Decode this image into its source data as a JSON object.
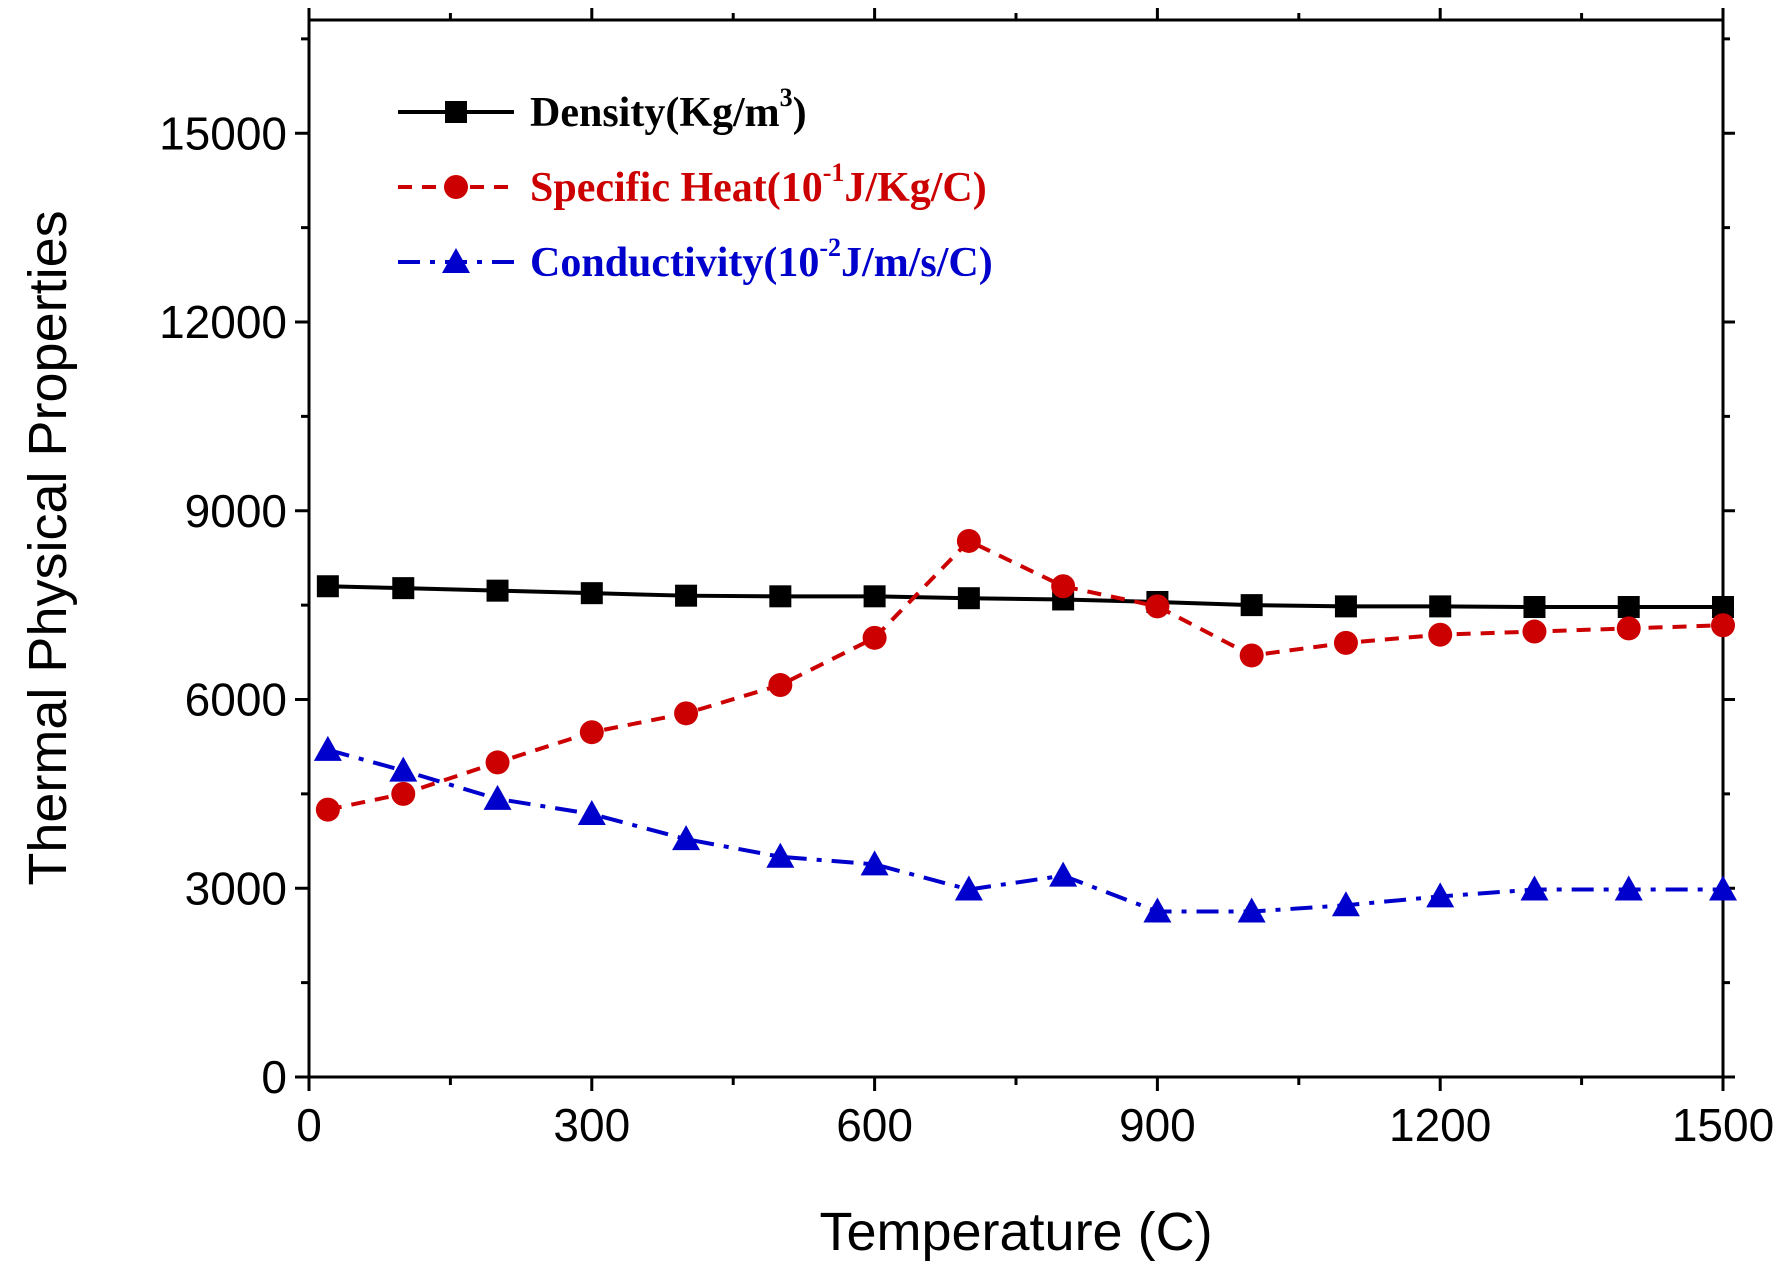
{
  "chart_data": {
    "type": "line",
    "title": "",
    "xlabel": "Temperature (C)",
    "ylabel": "Thermal Physical Properties",
    "xlim": [
      0,
      1500
    ],
    "ylim": [
      0,
      16800
    ],
    "xticks": [
      0,
      300,
      600,
      900,
      1200,
      1500
    ],
    "yticks": [
      0,
      3000,
      6000,
      9000,
      12000,
      15000
    ],
    "grid": false,
    "legend_position": "top-left",
    "series": [
      {
        "name": "Density",
        "legend": {
          "main": "Density(Kg/m",
          "sup": "3",
          "tail": ")"
        },
        "color": "#000000",
        "marker": "square",
        "dash": "solid",
        "x": [
          20,
          100,
          200,
          300,
          400,
          500,
          600,
          700,
          800,
          900,
          1000,
          1100,
          1200,
          1300,
          1400,
          1500
        ],
        "y": [
          7800,
          7770,
          7730,
          7690,
          7650,
          7640,
          7640,
          7610,
          7590,
          7550,
          7500,
          7480,
          7480,
          7470,
          7470,
          7470
        ]
      },
      {
        "name": "Specific Heat",
        "legend": {
          "main": "Specific Heat(10",
          "sup": "-1",
          "tail": "J/Kg/C)"
        },
        "color": "#cc0000",
        "marker": "circle",
        "dash": "dashed",
        "x": [
          20,
          100,
          200,
          300,
          400,
          500,
          600,
          700,
          800,
          900,
          1000,
          1100,
          1200,
          1300,
          1400,
          1500
        ],
        "y": [
          4250,
          4500,
          5000,
          5480,
          5780,
          6230,
          6980,
          8520,
          7800,
          7480,
          6700,
          6900,
          7030,
          7080,
          7130,
          7180
        ]
      },
      {
        "name": "Conductivity",
        "legend": {
          "main": "Conductivity(10",
          "sup": "-2",
          "tail": "J/m/s/C)"
        },
        "color": "#0000cc",
        "marker": "triangle",
        "dash": "dashdot",
        "x": [
          20,
          100,
          200,
          300,
          400,
          500,
          600,
          700,
          800,
          900,
          1000,
          1100,
          1200,
          1300,
          1400,
          1500
        ],
        "y": [
          5200,
          4870,
          4420,
          4180,
          3780,
          3500,
          3380,
          2980,
          3200,
          2630,
          2630,
          2730,
          2870,
          2980,
          2980,
          2980
        ]
      }
    ]
  }
}
